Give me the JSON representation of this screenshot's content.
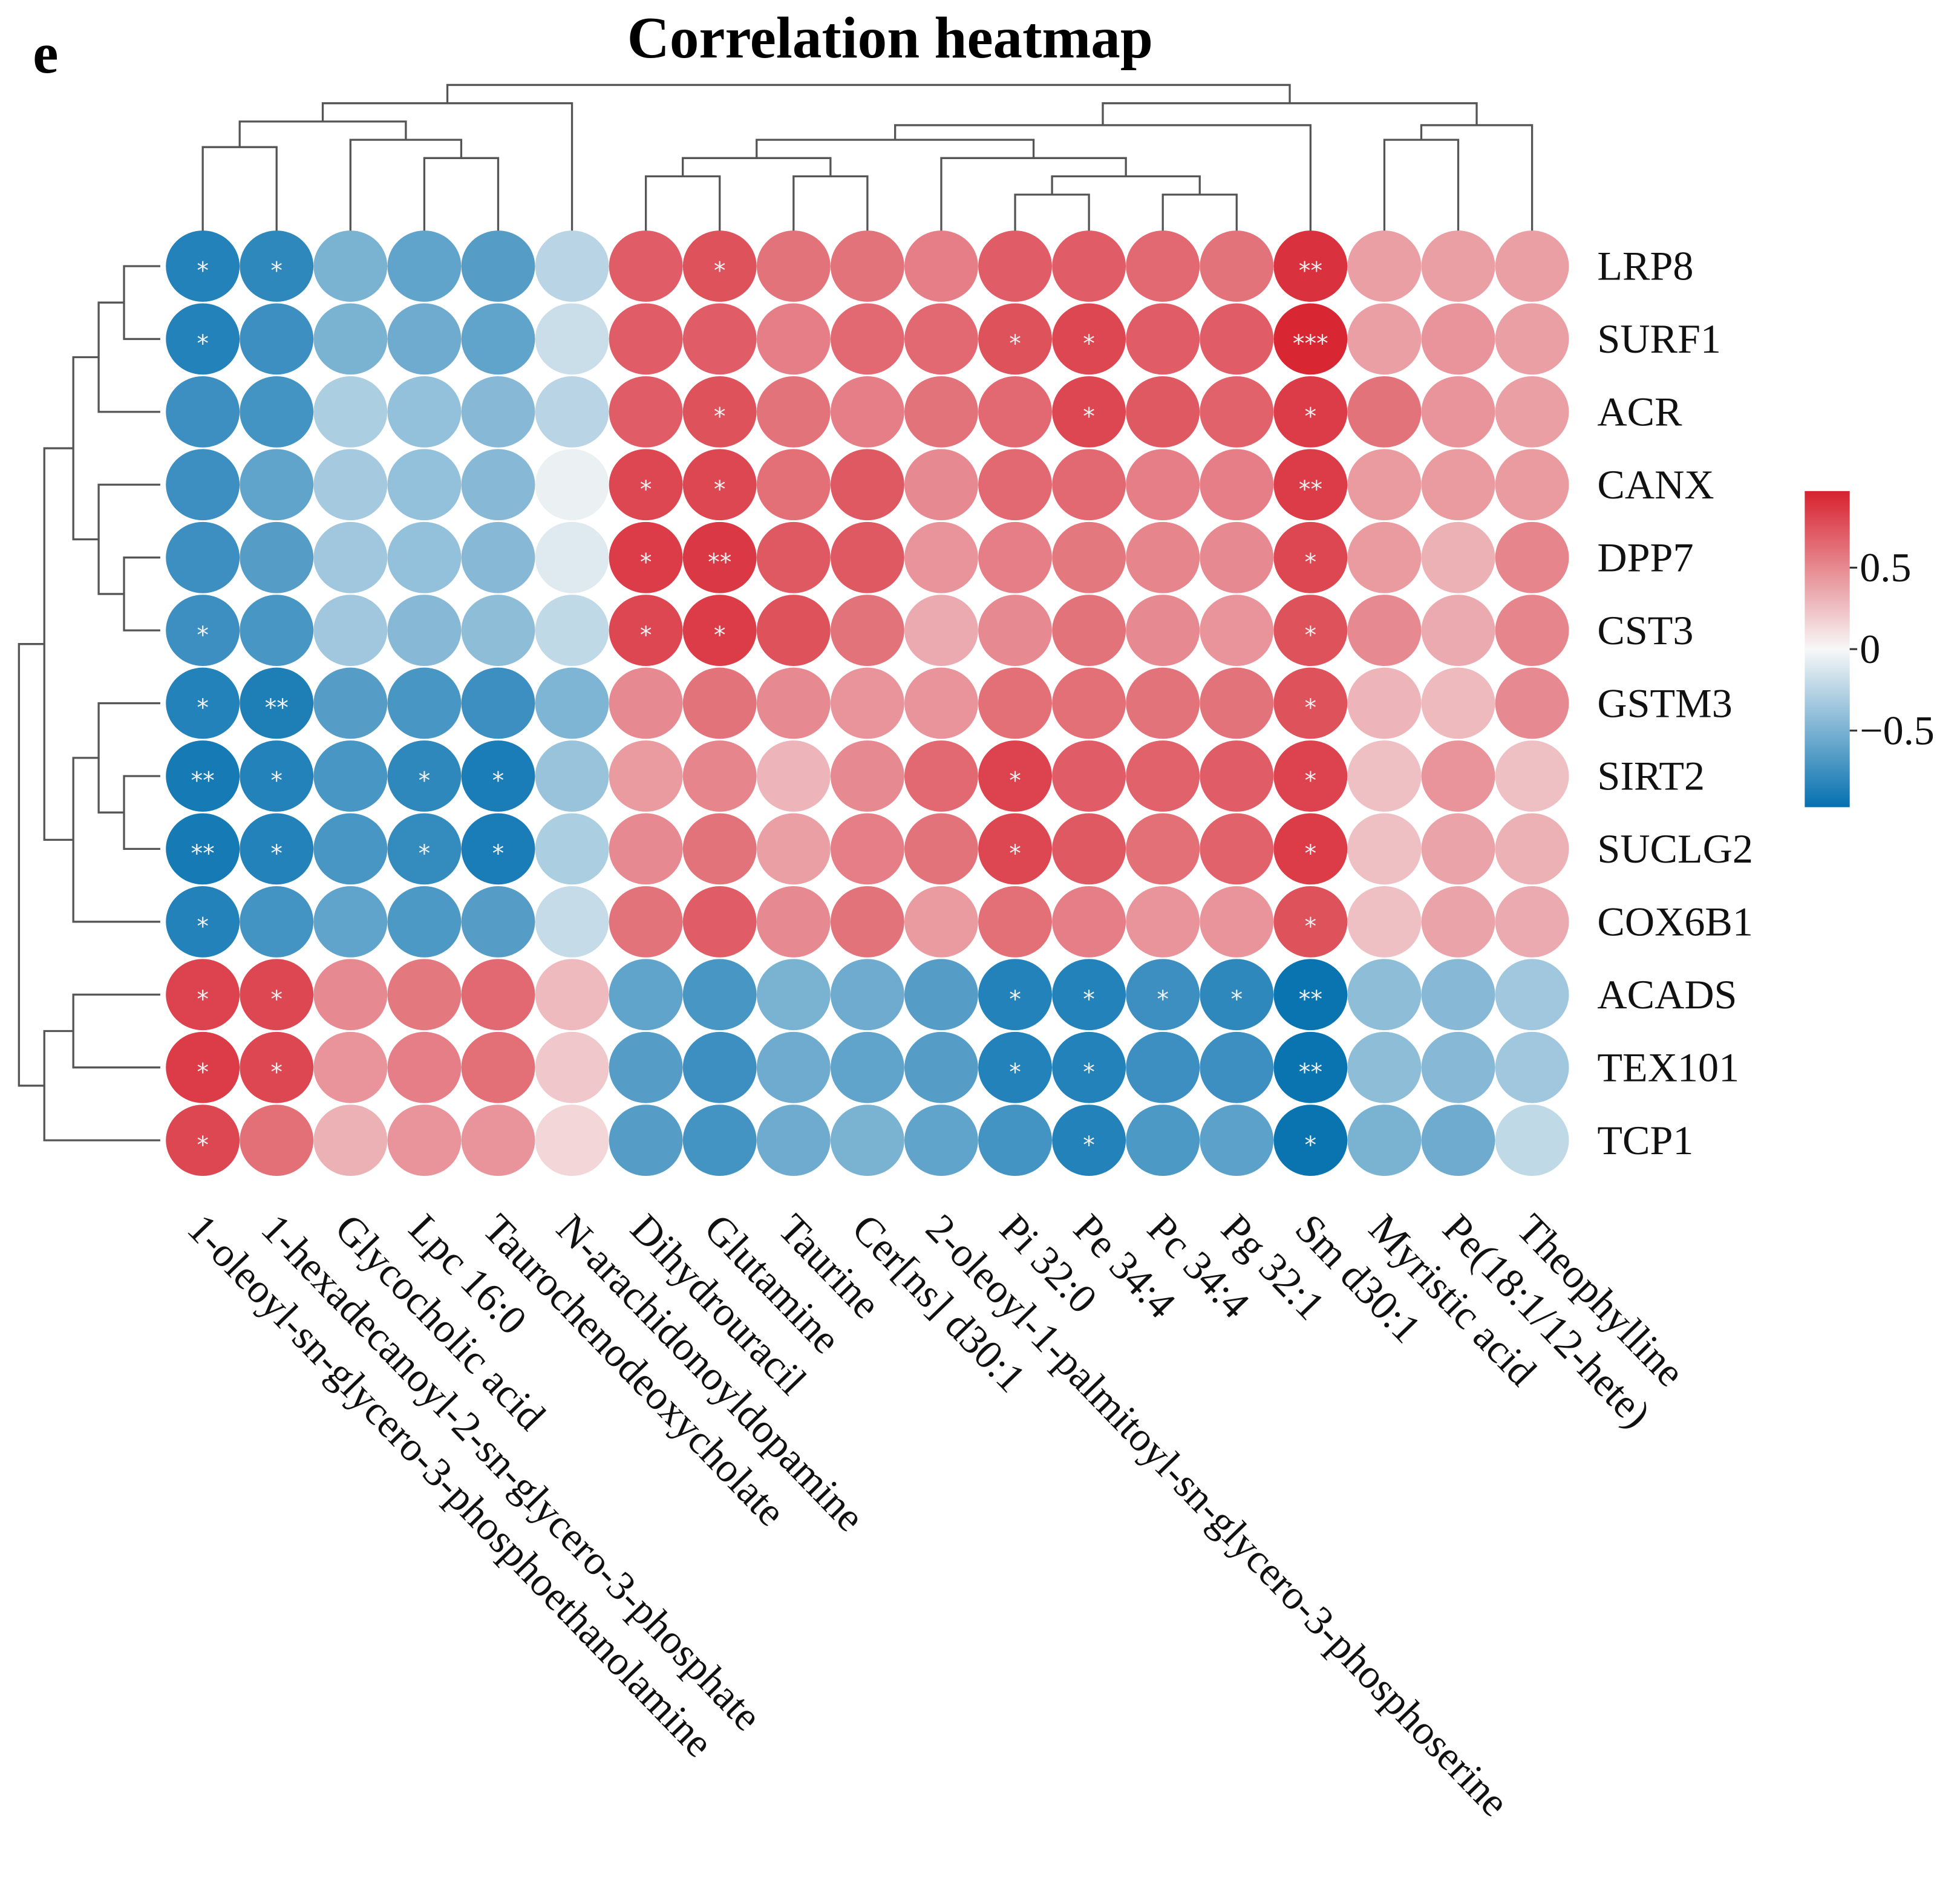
{
  "panel_label": "e",
  "chart_data": {
    "type": "heatmap",
    "title": "Correlation heatmap",
    "columns": [
      "1-oleoyl-sn-glycero-3-phosphoethanolamine",
      "1-hexadecanoyl-2-sn-glycero-3-phosphate",
      "Glycocholic acid",
      "Lpc 16:0",
      "Taurochenodeoxycholate",
      "N-arachidonoyldopamine",
      "Dihydrouracil",
      "Glutamine",
      "Taurine",
      "Cer[ns] d30:1",
      "2-oleoyl-1-palmitoyl-sn-glycero-3-phosphoserine",
      "Pi 32:0",
      "Pe 34:4",
      "Pc 34:4",
      "Pg 32:1",
      "Sm d30:1",
      "Myristic acid",
      "Pe(18:1/12-hete)",
      "Theophylline"
    ],
    "rows": [
      "LRP8",
      "SURF1",
      "ACR",
      "CANX",
      "DPP7",
      "CST3",
      "GSTM3",
      "SIRT2",
      "SUCLG2",
      "COX6B1",
      "ACADS",
      "TEX101",
      "TCP1"
    ],
    "values": [
      [
        -0.85,
        -0.8,
        -0.5,
        -0.6,
        -0.65,
        -0.25,
        0.7,
        0.75,
        0.6,
        0.6,
        0.55,
        0.7,
        0.7,
        0.65,
        0.6,
        0.9,
        0.4,
        0.4,
        0.4
      ],
      [
        -0.85,
        -0.75,
        -0.5,
        -0.55,
        -0.6,
        -0.18,
        0.7,
        0.7,
        0.55,
        0.65,
        0.65,
        0.75,
        0.8,
        0.7,
        0.7,
        0.95,
        0.4,
        0.45,
        0.4
      ],
      [
        -0.75,
        -0.72,
        -0.3,
        -0.4,
        -0.45,
        -0.25,
        0.7,
        0.75,
        0.6,
        0.55,
        0.6,
        0.65,
        0.8,
        0.72,
        0.68,
        0.85,
        0.6,
        0.45,
        0.4
      ],
      [
        -0.75,
        -0.6,
        -0.33,
        -0.4,
        -0.45,
        -0.05,
        0.8,
        0.8,
        0.62,
        0.72,
        0.5,
        0.65,
        0.65,
        0.55,
        0.55,
        0.85,
        0.42,
        0.42,
        0.42
      ],
      [
        -0.75,
        -0.65,
        -0.35,
        -0.4,
        -0.45,
        -0.1,
        0.85,
        0.87,
        0.72,
        0.72,
        0.45,
        0.55,
        0.58,
        0.52,
        0.5,
        0.8,
        0.42,
        0.32,
        0.52
      ],
      [
        -0.75,
        -0.7,
        -0.35,
        -0.45,
        -0.42,
        -0.22,
        0.8,
        0.85,
        0.75,
        0.6,
        0.35,
        0.5,
        0.6,
        0.5,
        0.45,
        0.75,
        0.5,
        0.35,
        0.52
      ],
      [
        -0.85,
        -0.87,
        -0.65,
        -0.7,
        -0.75,
        -0.48,
        0.5,
        0.6,
        0.5,
        0.45,
        0.45,
        0.62,
        0.62,
        0.6,
        0.6,
        0.75,
        0.3,
        0.28,
        0.5
      ],
      [
        -0.9,
        -0.85,
        -0.7,
        -0.8,
        -0.88,
        -0.38,
        0.42,
        0.52,
        0.3,
        0.5,
        0.65,
        0.82,
        0.7,
        0.68,
        0.7,
        0.82,
        0.25,
        0.45,
        0.25
      ],
      [
        -0.9,
        -0.85,
        -0.7,
        -0.78,
        -0.88,
        -0.3,
        0.5,
        0.6,
        0.4,
        0.55,
        0.6,
        0.8,
        0.72,
        0.62,
        0.68,
        0.85,
        0.25,
        0.38,
        0.32
      ],
      [
        -0.85,
        -0.72,
        -0.6,
        -0.68,
        -0.65,
        -0.2,
        0.6,
        0.7,
        0.5,
        0.6,
        0.42,
        0.62,
        0.55,
        0.45,
        0.45,
        0.75,
        0.25,
        0.38,
        0.35
      ],
      [
        0.82,
        0.8,
        0.5,
        0.58,
        0.65,
        0.28,
        -0.6,
        -0.7,
        -0.5,
        -0.55,
        -0.65,
        -0.85,
        -0.85,
        -0.75,
        -0.8,
        -0.95,
        -0.42,
        -0.45,
        -0.35
      ],
      [
        0.85,
        0.8,
        0.45,
        0.55,
        0.62,
        0.22,
        -0.65,
        -0.75,
        -0.55,
        -0.6,
        -0.65,
        -0.85,
        -0.85,
        -0.75,
        -0.75,
        -0.95,
        -0.42,
        -0.45,
        -0.35
      ],
      [
        0.8,
        0.62,
        0.32,
        0.45,
        0.45,
        0.15,
        -0.65,
        -0.72,
        -0.55,
        -0.5,
        -0.6,
        -0.72,
        -0.85,
        -0.68,
        -0.62,
        -0.95,
        -0.5,
        -0.55,
        -0.22
      ]
    ],
    "significance": [
      [
        "*",
        "*",
        "",
        "",
        "",
        "",
        "",
        "*",
        "",
        "",
        "",
        "",
        "",
        "",
        "",
        "**",
        "",
        "",
        ""
      ],
      [
        "*",
        "",
        "",
        "",
        "",
        "",
        "",
        "",
        "",
        "",
        "",
        "*",
        "*",
        "",
        "",
        "***",
        "",
        "",
        ""
      ],
      [
        "",
        "",
        "",
        "",
        "",
        "",
        "",
        "*",
        "",
        "",
        "",
        "",
        "*",
        "",
        "",
        "*",
        "",
        "",
        ""
      ],
      [
        "",
        "",
        "",
        "",
        "",
        "",
        "*",
        "*",
        "",
        "",
        "",
        "",
        "",
        "",
        "",
        "**",
        "",
        "",
        ""
      ],
      [
        "",
        "",
        "",
        "",
        "",
        "",
        "*",
        "**",
        "",
        "",
        "",
        "",
        "",
        "",
        "",
        "*",
        "",
        "",
        ""
      ],
      [
        "*",
        "",
        "",
        "",
        "",
        "",
        "*",
        "*",
        "",
        "",
        "",
        "",
        "",
        "",
        "",
        "*",
        "",
        "",
        ""
      ],
      [
        "*",
        "**",
        "",
        "",
        "",
        "",
        "",
        "",
        "",
        "",
        "",
        "",
        "",
        "",
        "",
        "*",
        "",
        "",
        ""
      ],
      [
        "**",
        "*",
        "",
        "*",
        "*",
        "",
        "",
        "",
        "",
        "",
        "",
        "*",
        "",
        "",
        "",
        "*",
        "",
        "",
        ""
      ],
      [
        "**",
        "*",
        "",
        "*",
        "*",
        "",
        "",
        "",
        "",
        "",
        "",
        "*",
        "",
        "",
        "",
        "*",
        "",
        "",
        ""
      ],
      [
        "*",
        "",
        "",
        "",
        "",
        "",
        "",
        "",
        "",
        "",
        "",
        "",
        "",
        "",
        "",
        "*",
        "",
        "",
        ""
      ],
      [
        "*",
        "*",
        "",
        "",
        "",
        "",
        "",
        "",
        "",
        "",
        "",
        "*",
        "*",
        "*",
        "*",
        "**",
        "",
        "",
        ""
      ],
      [
        "*",
        "*",
        "",
        "",
        "",
        "",
        "",
        "",
        "",
        "",
        "",
        "*",
        "*",
        "",
        "",
        "**",
        "",
        "",
        ""
      ],
      [
        "*",
        "",
        "",
        "",
        "",
        "",
        "",
        "",
        "",
        "",
        "",
        "",
        "*",
        "",
        "",
        "*",
        "",
        "",
        ""
      ]
    ],
    "column_dendrogram": [
      [
        0,
        1,
        2.3
      ],
      [
        3,
        4,
        2.0
      ],
      [
        2,
        20,
        2.5
      ],
      [
        19,
        21,
        3.0
      ],
      [
        22,
        5,
        3.5
      ],
      [
        6,
        7,
        1.5
      ],
      [
        8,
        9,
        1.5
      ],
      [
        24,
        25,
        2.0
      ],
      [
        11,
        12,
        1.0
      ],
      [
        13,
        14,
        1.0
      ],
      [
        27,
        28,
        1.5
      ],
      [
        10,
        29,
        2.0
      ],
      [
        26,
        30,
        2.5
      ],
      [
        31,
        15,
        2.9
      ],
      [
        16,
        17,
        2.5
      ],
      [
        33,
        18,
        2.9
      ],
      [
        32,
        34,
        3.5
      ],
      [
        23,
        35,
        4.0
      ]
    ],
    "row_dendrogram": [
      [
        0,
        1,
        1
      ],
      [
        13,
        2,
        1.7
      ],
      [
        4,
        5,
        1
      ],
      [
        3,
        15,
        1.7
      ],
      [
        14,
        16,
        2.4
      ],
      [
        7,
        8,
        1
      ],
      [
        6,
        18,
        1.7
      ],
      [
        19,
        9,
        2.4
      ],
      [
        17,
        20,
        3.2
      ],
      [
        10,
        11,
        2.4
      ],
      [
        22,
        12,
        3.2
      ],
      [
        21,
        23,
        3.9
      ]
    ],
    "colorbar": {
      "range": [
        -0.97,
        0.97
      ],
      "ticks": [
        0.5,
        0,
        -0.5
      ],
      "tick_labels": [
        "0.5",
        "0",
        "−0.5"
      ]
    },
    "colors": {
      "negative": "#0571b0",
      "zero": "#f7f7f7",
      "positive": "#d7222f"
    }
  }
}
